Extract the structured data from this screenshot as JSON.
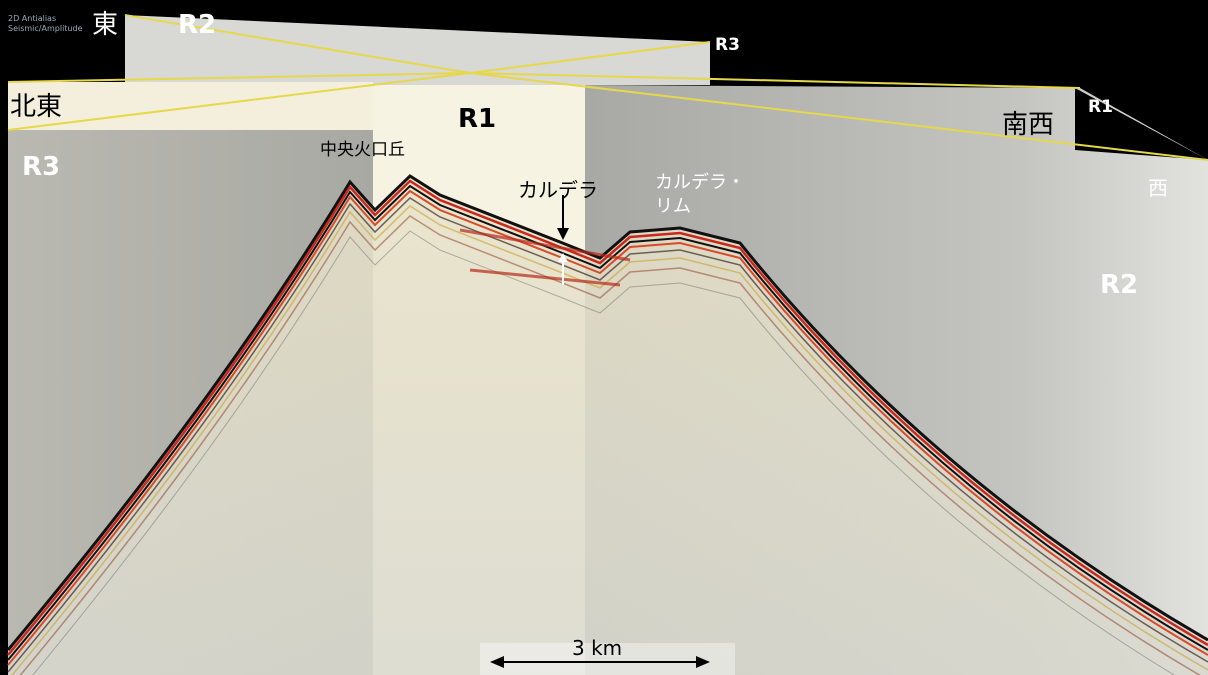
{
  "header": {
    "line1": "2D Antialias",
    "line2": "Seismic/Amplitude"
  },
  "labels": {
    "east": "東",
    "r2_top": "R2",
    "r3_top": "R3",
    "northeast": "北東",
    "r1_center": "R1",
    "southwest": "南西",
    "r1_right": "R1",
    "r3_left": "R3",
    "central_cone": "中央火口丘",
    "caldera": "カルデラ",
    "caldera_rim_1": "カルデラ・",
    "caldera_rim_2": "リム",
    "west": "西",
    "r2_right": "R2"
  },
  "scale_bar": {
    "label": "3 km"
  }
}
